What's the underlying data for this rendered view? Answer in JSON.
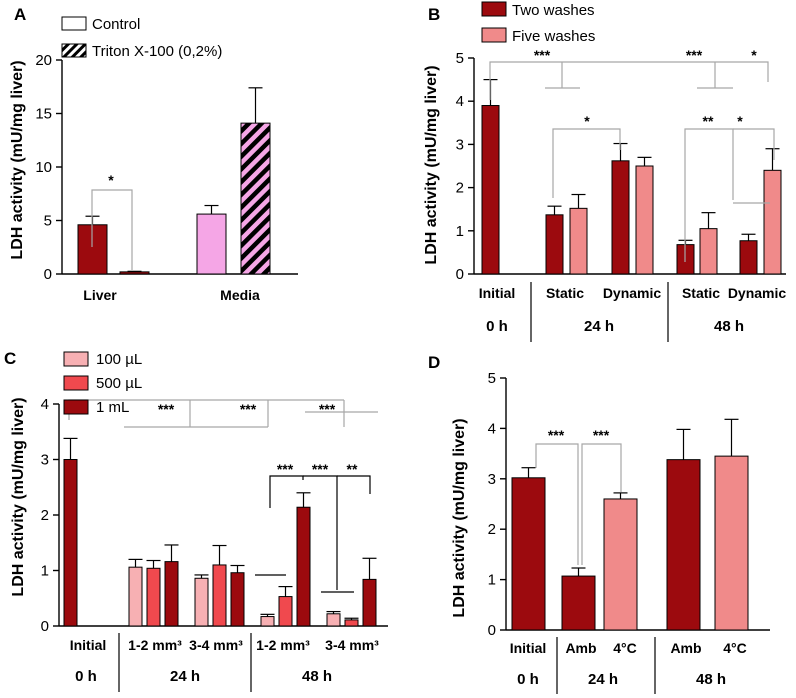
{
  "colors": {
    "dark_red": "#9c0a0e",
    "salmon": "#f08a8a",
    "light_pink": "#f7b0b3",
    "bright_red": "#f0494e",
    "pink": "#f5a6e6",
    "bracket_gray": "#a7a7a7"
  },
  "chart_data": [
    {
      "panel": "A",
      "type": "bar",
      "ylabel": "LDH activity (mU/mg liver)",
      "ylim": [
        0,
        20
      ],
      "yticks": [
        0,
        5,
        10,
        15,
        20
      ],
      "legend": [
        "Control",
        "Triton X-100 (0,2%)"
      ],
      "categories": [
        "Liver",
        "Media"
      ],
      "bars": [
        {
          "group": "Liver",
          "series": "Control",
          "value": 4.6,
          "err": 0.8,
          "color": "#9c0a0e",
          "hatch": false
        },
        {
          "group": "Liver",
          "series": "Triton X-100 (0,2%)",
          "value": 0.2,
          "err": 0.05,
          "color": "#9c0a0e",
          "hatch": false
        },
        {
          "group": "Media",
          "series": "Control",
          "value": 5.6,
          "err": 0.8,
          "color": "#f5a6e6",
          "hatch": false
        },
        {
          "group": "Media",
          "series": "Triton X-100 (0,2%)",
          "value": 14.1,
          "err": 3.3,
          "color": "#f5a6e6",
          "hatch": true
        }
      ],
      "annotations": [
        "*"
      ]
    },
    {
      "panel": "B",
      "type": "bar",
      "ylabel": "LDH activity (mU/mg liver)",
      "ylim": [
        0,
        5
      ],
      "yticks": [
        0,
        1,
        2,
        3,
        4,
        5
      ],
      "legend": [
        "Two washes",
        "Five washes"
      ],
      "categories": [
        "Initial",
        "Static",
        "Dynamic",
        "Static",
        "Dynamic"
      ],
      "groups": [
        "0 h",
        "24 h",
        "48 h"
      ],
      "bars": [
        {
          "category": "Initial",
          "series": "Two washes",
          "value": 3.9,
          "err": 0.6
        },
        {
          "category": "Static",
          "time": "24 h",
          "series": "Two washes",
          "value": 1.37,
          "err": 0.2
        },
        {
          "category": "Static",
          "time": "24 h",
          "series": "Five washes",
          "value": 1.52,
          "err": 0.32
        },
        {
          "category": "Dynamic",
          "time": "24 h",
          "series": "Two washes",
          "value": 2.62,
          "err": 0.4
        },
        {
          "category": "Dynamic",
          "time": "24 h",
          "series": "Five washes",
          "value": 2.5,
          "err": 0.2
        },
        {
          "category": "Static",
          "time": "48 h",
          "series": "Two washes",
          "value": 0.68,
          "err": 0.1
        },
        {
          "category": "Static",
          "time": "48 h",
          "series": "Five washes",
          "value": 1.05,
          "err": 0.37
        },
        {
          "category": "Dynamic",
          "time": "48 h",
          "series": "Two washes",
          "value": 0.77,
          "err": 0.15
        },
        {
          "category": "Dynamic",
          "time": "48 h",
          "series": "Five washes",
          "value": 2.4,
          "err": 0.5
        }
      ],
      "annotations": [
        "***",
        "***",
        "*",
        "*",
        "**",
        "*"
      ]
    },
    {
      "panel": "C",
      "type": "bar",
      "ylabel": "LDH activity (mU/mg liver)",
      "ylim": [
        0,
        4
      ],
      "yticks": [
        0,
        1,
        2,
        3,
        4
      ],
      "legend": [
        "100 µL",
        "500 µL",
        "1 mL"
      ],
      "categories": [
        "Initial",
        "1-2 mm³",
        "3-4 mm³",
        "1-2 mm³",
        "3-4 mm³"
      ],
      "groups": [
        "0 h",
        "24 h",
        "48 h"
      ],
      "bars": [
        {
          "category": "Initial",
          "series": "1 mL",
          "value": 3.0,
          "err": 0.38
        },
        {
          "category": "1-2 mm³",
          "time": "24 h",
          "series": "100 µL",
          "value": 1.06,
          "err": 0.14
        },
        {
          "category": "1-2 mm³",
          "time": "24 h",
          "series": "500 µL",
          "value": 1.04,
          "err": 0.14
        },
        {
          "category": "1-2 mm³",
          "time": "24 h",
          "series": "1 mL",
          "value": 1.16,
          "err": 0.3
        },
        {
          "category": "3-4 mm³",
          "time": "24 h",
          "series": "100 µL",
          "value": 0.86,
          "err": 0.06
        },
        {
          "category": "3-4 mm³",
          "time": "24 h",
          "series": "500 µL",
          "value": 1.1,
          "err": 0.35
        },
        {
          "category": "3-4 mm³",
          "time": "24 h",
          "series": "1 mL",
          "value": 0.96,
          "err": 0.13
        },
        {
          "category": "1-2 mm³",
          "time": "48 h",
          "series": "100 µL",
          "value": 0.17,
          "err": 0.04
        },
        {
          "category": "1-2 mm³",
          "time": "48 h",
          "series": "500 µL",
          "value": 0.53,
          "err": 0.18
        },
        {
          "category": "1-2 mm³",
          "time": "48 h",
          "series": "1 mL",
          "value": 2.14,
          "err": 0.26
        },
        {
          "category": "3-4 mm³",
          "time": "48 h",
          "series": "100 µL",
          "value": 0.22,
          "err": 0.04
        },
        {
          "category": "3-4 mm³",
          "time": "48 h",
          "series": "500 µL",
          "value": 0.11,
          "err": 0.03
        },
        {
          "category": "3-4 mm³",
          "time": "48 h",
          "series": "1 mL",
          "value": 0.84,
          "err": 0.38
        }
      ],
      "annotations": [
        "***",
        "***",
        "***",
        "***",
        "***",
        "**"
      ]
    },
    {
      "panel": "D",
      "type": "bar",
      "ylabel": "LDH activity (mU/mg liver)",
      "ylim": [
        0,
        5
      ],
      "yticks": [
        0,
        1,
        2,
        3,
        4,
        5
      ],
      "categories": [
        "Initial",
        "Amb",
        "4°C",
        "Amb",
        "4°C"
      ],
      "groups": [
        "0 h",
        "24 h",
        "48 h"
      ],
      "bars": [
        {
          "category": "Initial",
          "value": 3.02,
          "err": 0.2
        },
        {
          "category": "Amb",
          "time": "24 h",
          "value": 1.07,
          "err": 0.16
        },
        {
          "category": "4°C",
          "time": "24 h",
          "value": 2.6,
          "err": 0.12
        },
        {
          "category": "Amb",
          "time": "48 h",
          "value": 3.38,
          "err": 0.6
        },
        {
          "category": "4°C",
          "time": "48 h",
          "value": 3.45,
          "err": 0.73
        }
      ],
      "annotations": [
        "***",
        "***"
      ]
    }
  ]
}
